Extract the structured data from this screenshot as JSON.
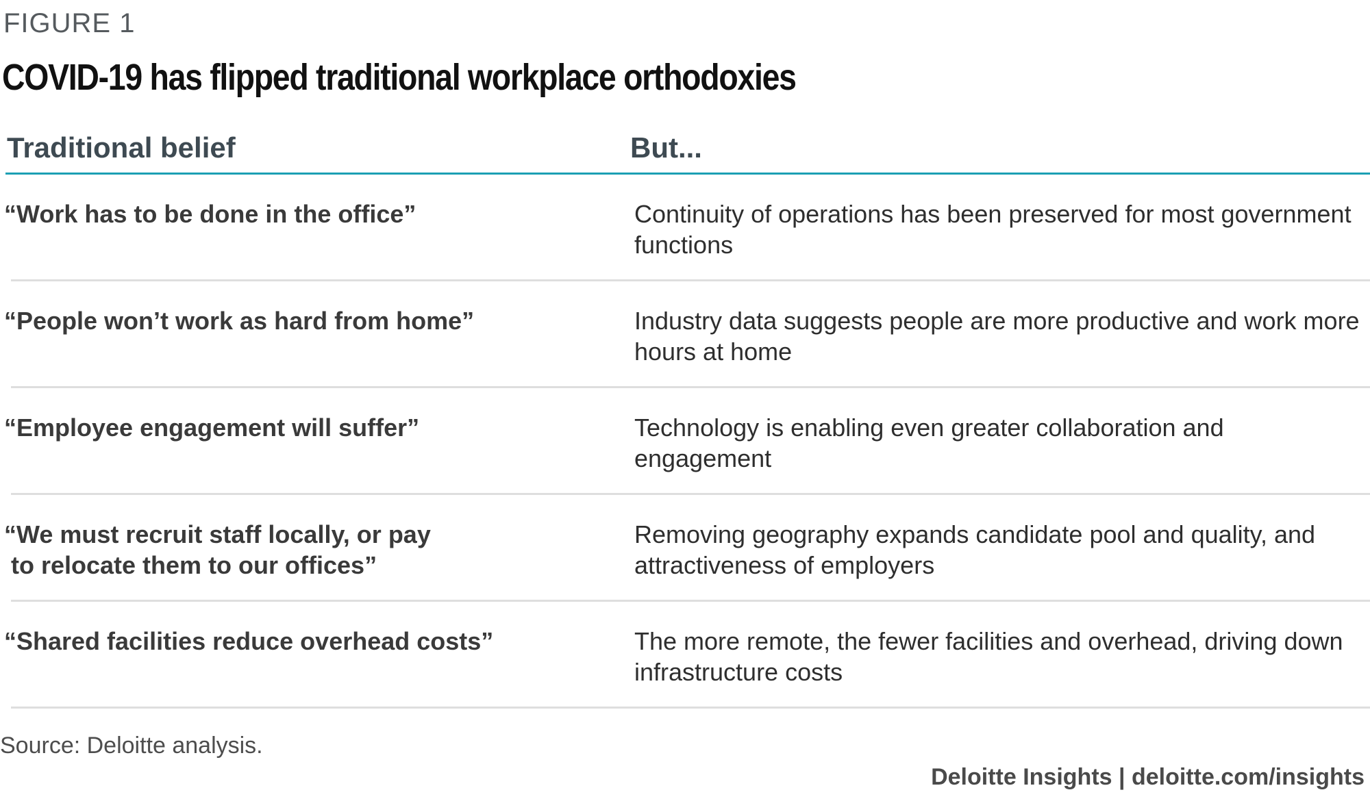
{
  "figure": {
    "label": "FIGURE 1",
    "title": "COVID-19 has flipped traditional workplace orthodoxies"
  },
  "table": {
    "headers": {
      "belief": "Traditional belief",
      "but": "But..."
    },
    "rows": [
      {
        "belief": "“Work has to be done in the office”",
        "but": "Continuity of operations has been preserved for most government functions"
      },
      {
        "belief": "“People won’t work as hard from home”",
        "but": "Industry data suggests people are more productive and work more hours at home"
      },
      {
        "belief": "“Employee engagement will suffer”",
        "but": "Technology is enabling even greater collaboration and engagement"
      },
      {
        "belief": "“We must recruit staff locally, or pay\n to relocate them to our offices”",
        "but": "Removing geography expands candidate pool and quality, and attractiveness of employers"
      },
      {
        "belief": "“Shared facilities reduce overhead costs”",
        "but": "The more remote, the fewer facilities and overhead, driving down infrastructure costs"
      }
    ]
  },
  "footer": {
    "source": "Source: Deloitte analysis.",
    "brand": "Deloitte Insights | deloitte.com/insights"
  }
}
